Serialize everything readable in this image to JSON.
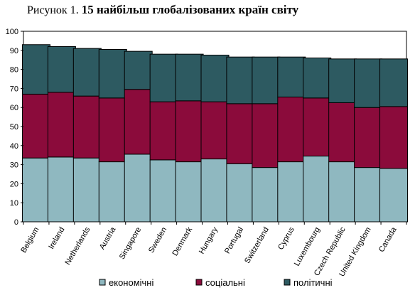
{
  "chart_data": {
    "type": "bar",
    "stacked": true,
    "title_prefix": "Рисунок 1.",
    "title": "15 найбільш глобалізованих країн світу",
    "xlabel": "",
    "ylabel": "",
    "ylim": [
      0,
      100
    ],
    "yticks": [
      0,
      10,
      20,
      30,
      40,
      50,
      60,
      70,
      80,
      90,
      100
    ],
    "grid": false,
    "legend_position": "bottom",
    "categories": [
      "Belgium",
      "Ireland",
      "Netherlands",
      "Austria",
      "Singapore",
      "Sweden",
      "Denmark",
      "Hungary",
      "Portugal",
      "Switzerland",
      "Cyprus",
      "Luxembourg",
      "Czech Republic",
      "United Kingdom",
      "Canada"
    ],
    "series": [
      {
        "name": "економічні",
        "color": "#8fb8c0",
        "values": [
          33.5,
          34,
          33.5,
          31.5,
          35.5,
          32.5,
          31.5,
          33,
          30.5,
          28.5,
          31.5,
          34.5,
          31.5,
          28.5,
          28
        ]
      },
      {
        "name": "соціальні",
        "color": "#8b0b3b",
        "values": [
          33.5,
          34,
          32.5,
          33.5,
          34,
          30.5,
          32,
          30,
          31.5,
          33.5,
          34,
          30.5,
          31,
          31.5,
          32.5
        ]
      },
      {
        "name": "політичні",
        "color": "#2d5a61",
        "values": [
          26,
          24,
          25,
          25.5,
          20,
          25,
          24.5,
          24.5,
          24.5,
          24.5,
          21,
          21,
          23,
          25.5,
          25
        ]
      }
    ]
  }
}
